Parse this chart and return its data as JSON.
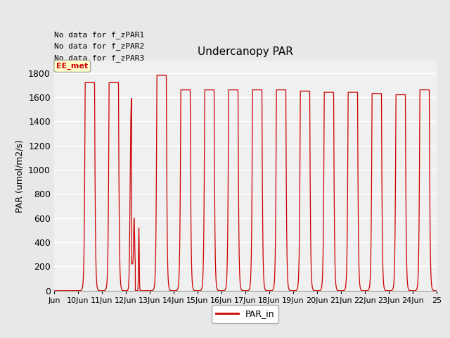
{
  "title": "Undercanopy PAR",
  "ylabel": "PAR (umol/m2/s)",
  "ylim": [
    0,
    1900
  ],
  "yticks": [
    0,
    200,
    400,
    600,
    800,
    1000,
    1200,
    1400,
    1600,
    1800
  ],
  "line_color": "#cc0000",
  "bg_color": "#e8e8e8",
  "plot_bg_color": "#f0f0f0",
  "legend_label": "PAR_in",
  "no_data_texts": [
    "No data for f_zPAR1",
    "No data for f_zPAR2",
    "No data for f_zPAR3"
  ],
  "ee_met_label": "EE_met",
  "xlim": [
    9,
    25
  ],
  "xtick_positions": [
    9,
    10,
    11,
    12,
    13,
    14,
    15,
    16,
    17,
    18,
    19,
    20,
    21,
    22,
    23,
    24,
    25
  ],
  "xtick_labels": [
    "Jun",
    "10Jun",
    "11Jun",
    "12Jun",
    "13Jun",
    "14Jun",
    "15Jun",
    "16Jun",
    "17Jun",
    "18Jun",
    "19Jun",
    "20Jun",
    "21Jun",
    "22Jun",
    "23Jun",
    "24Jun",
    "25"
  ],
  "peaks": [
    0,
    1720,
    1720,
    520,
    1780,
    1660,
    1660,
    1660,
    1660,
    1660,
    1650,
    1640,
    1640,
    1630,
    1620,
    1660
  ],
  "day_start": 9,
  "num_days": 16,
  "samples_per_day": 288
}
